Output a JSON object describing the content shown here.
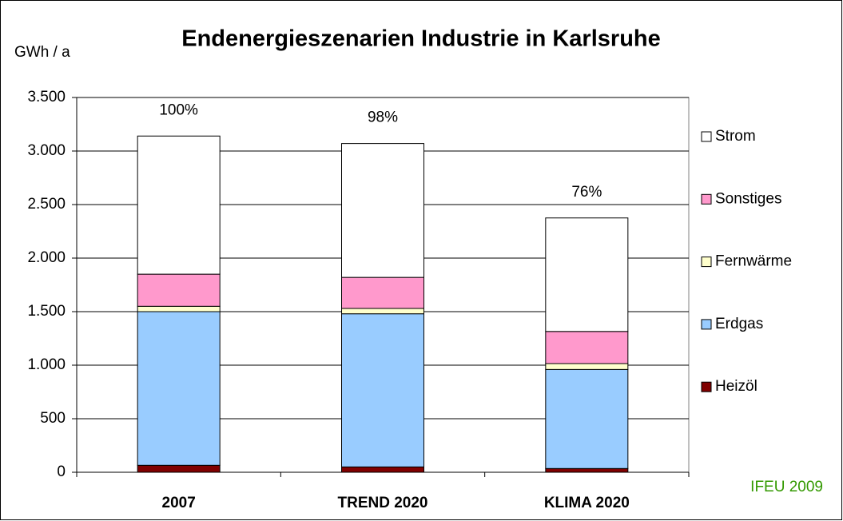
{
  "chart_data": {
    "type": "stacked_bar",
    "title": "Endenergieszenarien Industrie in Karlsruhe",
    "y_label": "GWh / a",
    "source": "IFEU 2009",
    "categories": [
      "2007",
      "TREND 2020",
      "KLIMA 2020"
    ],
    "annotations": [
      "100%",
      "98%",
      "76%"
    ],
    "series": [
      {
        "name": "Heizöl",
        "color": "#800000",
        "values": [
          65,
          50,
          35
        ]
      },
      {
        "name": "Erdgas",
        "color": "#99ccff",
        "values": [
          1435,
          1430,
          925
        ]
      },
      {
        "name": "Fernwärme",
        "color": "#ffffcc",
        "values": [
          50,
          50,
          55
        ]
      },
      {
        "name": "Sonstiges",
        "color": "#ff99cc",
        "values": [
          300,
          290,
          300
        ]
      },
      {
        "name": "Strom",
        "color": "#ffffff",
        "values": [
          1290,
          1250,
          1060
        ]
      }
    ],
    "ylim": [
      0,
      3500
    ],
    "yticks": [
      0,
      500,
      {
        "value": 1000,
        "label": "1.000"
      },
      {
        "value": 1500,
        "label": "1.500"
      },
      {
        "value": 2000,
        "label": "2.000"
      },
      {
        "value": 2500,
        "label": "2.500"
      },
      {
        "value": 3000,
        "label": "3.000"
      },
      {
        "value": 3500,
        "label": "3.500"
      }
    ],
    "grid": true,
    "legend": "right"
  }
}
